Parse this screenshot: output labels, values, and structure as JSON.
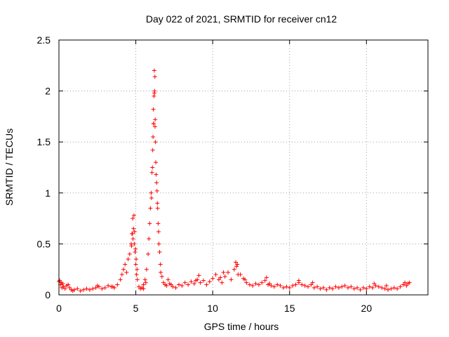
{
  "chart_data": {
    "type": "scatter",
    "title": "Day 022 of 2021, SRMTID for receiver cn12",
    "xlabel": "GPS time / hours",
    "ylabel": "SRMTID / TECUs",
    "xlim": [
      0,
      24
    ],
    "ylim": [
      0,
      2.5
    ],
    "xticks": [
      0,
      5,
      10,
      15,
      20
    ],
    "xtick_labels": [
      "0",
      "5",
      "10",
      "15",
      "20"
    ],
    "yticks": [
      0,
      0.5,
      1,
      1.5,
      2,
      2.5
    ],
    "ytick_labels": [
      "0",
      "0.5",
      "1",
      "1.5",
      "2",
      "2.5"
    ],
    "grid": true,
    "marker": "+",
    "series": [
      {
        "name": "SRMTID",
        "color": "#ff0000",
        "x": [
          0.0,
          0.1,
          0.2,
          0.3,
          0.4,
          0.5,
          0.6,
          0.7,
          0.8,
          0.9,
          1.0,
          1.2,
          1.4,
          1.6,
          1.8,
          2.0,
          2.2,
          2.4,
          2.6,
          2.8,
          3.0,
          3.2,
          3.4,
          3.6,
          3.8,
          4.0,
          4.1,
          4.2,
          4.3,
          4.4,
          4.5,
          4.6,
          4.7,
          4.75,
          4.8,
          4.85,
          4.9,
          4.95,
          5.0,
          5.05,
          5.1,
          5.2,
          5.3,
          5.4,
          5.5,
          5.6,
          5.7,
          5.8,
          5.85,
          5.9,
          5.95,
          6.0,
          6.05,
          6.1,
          6.12,
          6.15,
          6.18,
          6.2,
          6.22,
          6.25,
          6.28,
          6.3,
          6.35,
          6.4,
          6.45,
          6.5,
          6.6,
          6.7,
          6.8,
          6.9,
          7.0,
          7.2,
          7.4,
          7.6,
          7.8,
          8.0,
          8.2,
          8.4,
          8.6,
          8.8,
          9.0,
          9.2,
          9.4,
          9.6,
          9.8,
          10.0,
          10.2,
          10.4,
          10.6,
          10.8,
          11.0,
          11.2,
          11.4,
          11.6,
          11.8,
          12.0,
          12.2,
          12.4,
          12.6,
          12.8,
          13.0,
          13.2,
          13.4,
          13.6,
          13.8,
          14.0,
          14.2,
          14.4,
          14.6,
          14.8,
          15.0,
          15.2,
          15.4,
          15.6,
          15.8,
          16.0,
          16.2,
          16.4,
          16.6,
          16.8,
          17.0,
          17.2,
          17.4,
          17.6,
          17.8,
          18.0,
          18.2,
          18.4,
          18.6,
          18.8,
          19.0,
          19.2,
          19.4,
          19.6,
          19.8,
          20.0,
          20.2,
          20.4,
          20.6,
          20.8,
          21.0,
          21.2,
          21.4,
          21.6,
          21.8,
          22.0,
          22.2,
          22.4,
          22.6,
          22.8,
          4.82,
          4.88,
          4.92,
          4.98,
          5.02,
          5.08,
          4.78,
          4.72,
          6.02,
          6.08,
          6.14,
          6.16,
          6.21,
          6.24,
          6.26,
          6.32,
          6.38,
          6.42,
          6.48,
          6.55,
          6.62,
          0.05,
          0.15,
          0.25,
          2.5,
          3.5,
          5.5,
          5.65,
          7.1,
          7.3,
          8.9,
          9.1,
          10.5,
          10.7,
          11.5,
          11.55,
          11.65,
          12.1,
          13.5,
          13.7,
          15.6,
          16.5,
          20.5,
          21.3,
          22.5,
          22.7
        ],
        "y": [
          0.13,
          0.1,
          0.07,
          0.08,
          0.06,
          0.09,
          0.1,
          0.07,
          0.05,
          0.04,
          0.05,
          0.06,
          0.04,
          0.05,
          0.06,
          0.05,
          0.06,
          0.07,
          0.08,
          0.06,
          0.07,
          0.09,
          0.08,
          0.07,
          0.1,
          0.15,
          0.2,
          0.25,
          0.3,
          0.22,
          0.35,
          0.4,
          0.5,
          0.6,
          0.75,
          0.65,
          0.5,
          0.42,
          0.3,
          0.2,
          0.15,
          0.08,
          0.06,
          0.07,
          0.1,
          0.15,
          0.25,
          0.4,
          0.55,
          0.7,
          0.85,
          1.0,
          1.2,
          1.42,
          1.55,
          1.68,
          1.95,
          2.2,
          2.0,
          1.65,
          1.5,
          1.3,
          1.1,
          0.9,
          0.7,
          0.5,
          0.3,
          0.18,
          0.12,
          0.1,
          0.09,
          0.11,
          0.08,
          0.07,
          0.1,
          0.09,
          0.12,
          0.1,
          0.13,
          0.11,
          0.15,
          0.12,
          0.14,
          0.1,
          0.13,
          0.16,
          0.2,
          0.15,
          0.12,
          0.18,
          0.22,
          0.15,
          0.25,
          0.3,
          0.2,
          0.16,
          0.12,
          0.1,
          0.09,
          0.11,
          0.1,
          0.12,
          0.14,
          0.1,
          0.09,
          0.08,
          0.1,
          0.09,
          0.07,
          0.08,
          0.07,
          0.09,
          0.1,
          0.12,
          0.1,
          0.09,
          0.08,
          0.1,
          0.07,
          0.08,
          0.06,
          0.07,
          0.05,
          0.07,
          0.06,
          0.08,
          0.07,
          0.08,
          0.09,
          0.07,
          0.08,
          0.06,
          0.07,
          0.05,
          0.07,
          0.06,
          0.08,
          0.07,
          0.09,
          0.08,
          0.07,
          0.06,
          0.05,
          0.06,
          0.07,
          0.06,
          0.08,
          0.1,
          0.09,
          0.12,
          0.55,
          0.78,
          0.62,
          0.45,
          0.35,
          0.25,
          0.6,
          0.48,
          0.95,
          1.25,
          1.82,
          1.68,
          1.98,
          2.14,
          1.72,
          1.18,
          1.02,
          0.85,
          0.62,
          0.42,
          0.22,
          0.14,
          0.12,
          0.11,
          0.09,
          0.08,
          0.06,
          0.12,
          0.15,
          0.1,
          0.14,
          0.19,
          0.17,
          0.22,
          0.32,
          0.28,
          0.2,
          0.15,
          0.17,
          0.11,
          0.14,
          0.12,
          0.11,
          0.09,
          0.12,
          0.11
        ]
      }
    ]
  }
}
